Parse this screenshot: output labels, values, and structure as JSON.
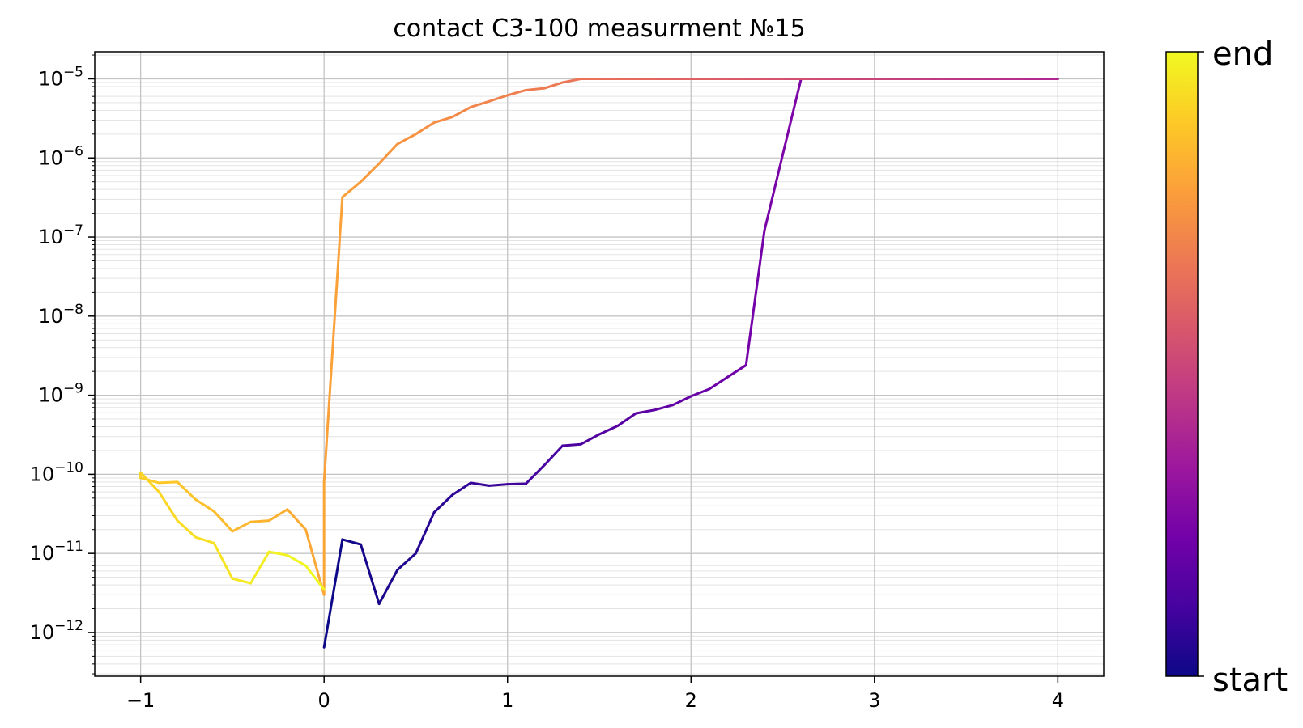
{
  "chart_data": {
    "type": "line",
    "title": "contact C3-100 measurment №15",
    "xlabel": "",
    "ylabel": "",
    "xlim": [
      -1.25,
      4.25
    ],
    "ylim": [
      2.8e-13,
      2.2e-05
    ],
    "y_scale": "log",
    "grid": {
      "major": true,
      "minor_y": true
    },
    "x_ticks": [
      {
        "value": -1,
        "label": "−1"
      },
      {
        "value": 0,
        "label": "0"
      },
      {
        "value": 1,
        "label": "1"
      },
      {
        "value": 2,
        "label": "2"
      },
      {
        "value": 3,
        "label": "3"
      },
      {
        "value": 4,
        "label": "4"
      }
    ],
    "y_ticks": [
      {
        "exp": -12,
        "base": "10",
        "sup": "−12"
      },
      {
        "exp": -11,
        "base": "10",
        "sup": "−11"
      },
      {
        "exp": -10,
        "base": "10",
        "sup": "−10"
      },
      {
        "exp": -9,
        "base": "10",
        "sup": "−9"
      },
      {
        "exp": -8,
        "base": "10",
        "sup": "−8"
      },
      {
        "exp": -7,
        "base": "10",
        "sup": "−7"
      },
      {
        "exp": -6,
        "base": "10",
        "sup": "−6"
      },
      {
        "exp": -5,
        "base": "10",
        "sup": "−5"
      }
    ],
    "colormap": "plasma",
    "colorbar": {
      "labels": {
        "start": "start",
        "end": "end"
      },
      "colors": [
        "#0d0887",
        "#46039f",
        "#7201a8",
        "#9c179e",
        "#bd3786",
        "#d8576b",
        "#ed7953",
        "#fb9f3a",
        "#fdca26",
        "#f0f921"
      ]
    },
    "series": [
      {
        "x": [
          0.0,
          0.1,
          0.2,
          0.3,
          0.4,
          0.5,
          0.6,
          0.7,
          0.8,
          0.9,
          1.0,
          1.1,
          1.2,
          1.3,
          1.4,
          1.5,
          1.6,
          1.7,
          1.8,
          1.9,
          2.0,
          2.1,
          2.2,
          2.3,
          2.4,
          2.5,
          2.6,
          2.7,
          2.8,
          2.9,
          3.0,
          3.1,
          3.2,
          3.3,
          3.4,
          3.5,
          3.6,
          3.7,
          3.8,
          3.9,
          4.0,
          3.9,
          3.8,
          3.7,
          3.6,
          3.5,
          3.4,
          3.3,
          3.2,
          3.1,
          3.0,
          2.9,
          2.8,
          2.7,
          2.6,
          2.5,
          2.4,
          2.3,
          2.2,
          2.1,
          2.0,
          1.9,
          1.8,
          1.7,
          1.6,
          1.5,
          1.4,
          1.3,
          1.2,
          1.1,
          1.0,
          0.9,
          0.8,
          0.7,
          0.6,
          0.5,
          0.4,
          0.3,
          0.2,
          0.1,
          0.0,
          0.0,
          -0.1,
          -0.2,
          -0.3,
          -0.4,
          -0.5,
          -0.6,
          -0.7,
          -0.8,
          -0.9,
          -1.0,
          -1.0,
          -0.9,
          -0.8,
          -0.7,
          -0.6,
          -0.5,
          -0.4,
          -0.3,
          -0.2,
          -0.1,
          0.0
        ],
        "y": [
          6.5e-13,
          1.5e-11,
          1.3e-11,
          2.3e-12,
          6.2e-12,
          1e-11,
          3.3e-11,
          5.5e-11,
          7.8e-11,
          7.2e-11,
          7.5e-11,
          7.6e-11,
          1.3e-10,
          2.3e-10,
          2.4e-10,
          3.2e-10,
          4.1e-10,
          5.9e-10,
          6.5e-10,
          7.5e-10,
          9.7e-10,
          1.2e-09,
          1.7e-09,
          2.4e-09,
          1.2e-07,
          1.1e-06,
          1e-05,
          1e-05,
          1e-05,
          1e-05,
          1e-05,
          1e-05,
          1e-05,
          1e-05,
          1e-05,
          1e-05,
          1e-05,
          1e-05,
          1e-05,
          1e-05,
          1e-05,
          1e-05,
          1e-05,
          1e-05,
          1e-05,
          1e-05,
          1e-05,
          1e-05,
          1e-05,
          1e-05,
          1e-05,
          1e-05,
          1e-05,
          1e-05,
          1e-05,
          1e-05,
          1e-05,
          1e-05,
          1e-05,
          1e-05,
          1e-05,
          1e-05,
          1e-05,
          1e-05,
          1e-05,
          1e-05,
          1e-05,
          9e-06,
          7.6e-06,
          7.2e-06,
          6.2e-06,
          5.2e-06,
          4.4e-06,
          3.3e-06,
          2.8e-06,
          2e-06,
          1.5e-06,
          8.5e-07,
          5e-07,
          3.2e-07,
          8e-11,
          3e-12,
          2e-11,
          3.6e-11,
          2.6e-11,
          2.5e-11,
          1.9e-11,
          3.4e-11,
          4.8e-11,
          8e-11,
          7.8e-11,
          9e-11,
          1.05e-10,
          6e-11,
          2.6e-11,
          1.6e-11,
          1.35e-11,
          4.8e-12,
          4.2e-12,
          1.05e-11,
          9.5e-12,
          7e-12,
          3.5e-12
        ]
      }
    ]
  }
}
